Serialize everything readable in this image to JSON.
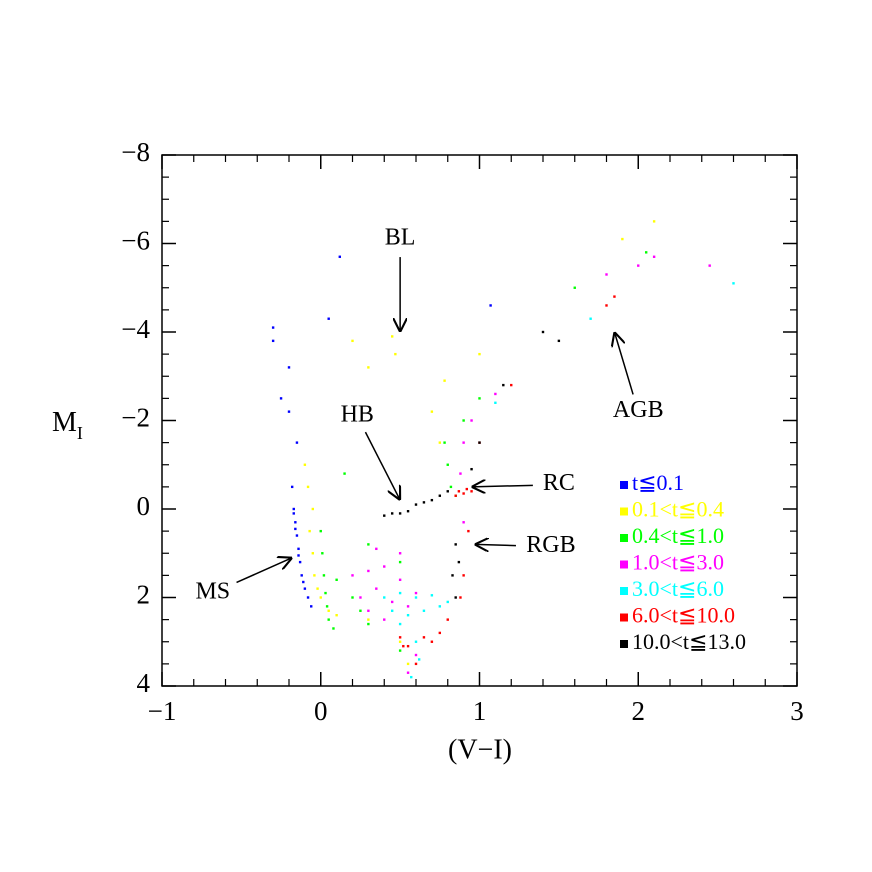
{
  "chart_data": {
    "type": "scatter",
    "xlabel": "(V−I)",
    "ylabel": "M",
    "ylabel_sub": "I",
    "xlim": [
      -1,
      3
    ],
    "ylim": [
      -8,
      4
    ],
    "y_inverted": true,
    "xticks": [
      {
        "value": -1,
        "label": "−1"
      },
      0,
      1,
      2,
      3
    ],
    "yticks": [
      {
        "value": -8,
        "label": "−8"
      },
      {
        "value": -6,
        "label": "−6"
      },
      {
        "value": -4,
        "label": "−4"
      },
      {
        "value": -2,
        "label": "−2"
      },
      0,
      2,
      4
    ],
    "xminorticks": [
      -0.8,
      -0.6,
      -0.4,
      -0.2,
      0.2,
      0.4,
      0.6,
      0.8,
      1.2,
      1.4,
      1.6,
      1.8,
      2.2,
      2.4,
      2.6,
      2.8
    ],
    "yminorticks": [
      -7.5,
      -7,
      -6.5,
      -5.5,
      -5,
      -4.5,
      -3.5,
      -3,
      -2.5,
      -1.5,
      -1,
      -0.5,
      0.5,
      1,
      1.5,
      2.5,
      3,
      3.5
    ],
    "legend": "lower right",
    "series": [
      {
        "name": "t≦0.1",
        "color": "#0000ff",
        "x": [
          -0.3,
          -0.3,
          -0.2,
          -0.25,
          0.12,
          0.05,
          1.07,
          -0.2,
          -0.15,
          -0.18,
          -0.17,
          -0.16,
          -0.15,
          -0.14,
          -0.13,
          -0.12,
          -0.1,
          -0.08,
          -0.06,
          -0.17,
          -0.16,
          -0.14,
          -0.11
        ],
        "y": [
          -4.1,
          -3.8,
          -3.2,
          -2.5,
          -5.7,
          -4.3,
          -4.6,
          -2.2,
          -1.5,
          -0.5,
          0,
          0.3,
          0.6,
          0.9,
          1.2,
          1.5,
          1.8,
          2.0,
          2.2,
          0.1,
          0.45,
          1.05,
          1.65
        ]
      },
      {
        "name": "0.1<t≦0.4",
        "color": "#ffff00",
        "x": [
          -0.1,
          -0.08,
          -0.05,
          -0.05,
          -0.04,
          0,
          0.05,
          0.2,
          0.3,
          0.45,
          0.47,
          0.7,
          0.75,
          0.78,
          1.0,
          1.9,
          2.1,
          0.1,
          0.3,
          0.5,
          0.55,
          -0.07,
          -0.02
        ],
        "y": [
          -1.0,
          -0.5,
          0,
          1,
          1.5,
          2,
          2.3,
          -3.8,
          -3.2,
          -3.9,
          -3.5,
          -2.2,
          -1.5,
          -2.9,
          -3.5,
          -6.1,
          -6.5,
          2.4,
          2.5,
          3.0,
          3.5,
          0.5,
          1.8
        ]
      },
      {
        "name": "0.4<t≦1.0",
        "color": "#00ff00",
        "x": [
          0,
          0.01,
          0.02,
          0.03,
          0.04,
          0.05,
          0.3,
          0.5,
          0.78,
          0.8,
          0.82,
          0.85,
          0.9,
          1.0,
          1.6,
          2.05,
          0.15,
          0.3,
          0.5,
          0.1,
          0.2,
          0.08,
          0.25
        ],
        "y": [
          0.5,
          1.0,
          1.5,
          1.9,
          2.2,
          2.5,
          2.6,
          3.2,
          -1.5,
          -1.0,
          -0.5,
          -0.3,
          -2.0,
          -2.5,
          -5.0,
          -5.8,
          -0.8,
          0.8,
          1.2,
          1.6,
          2.0,
          2.7,
          2.3
        ]
      },
      {
        "name": "1.0<t≦3.0",
        "color": "#ff00ff",
        "x": [
          0.2,
          0.3,
          0.4,
          0.5,
          0.6,
          0.25,
          0.35,
          0.45,
          0.55,
          0.3,
          0.4,
          0.9,
          0.95,
          1.1,
          0.88,
          0.9,
          2.0,
          2.1,
          2.45,
          1.8,
          0.6,
          0.55,
          0.5,
          0.35
        ],
        "y": [
          1.5,
          1.4,
          1.3,
          1.6,
          1.9,
          2.0,
          1.8,
          2.1,
          2.2,
          2.3,
          2.5,
          -1.5,
          -2.0,
          -2.6,
          -0.8,
          0.3,
          -5.5,
          -5.7,
          -5.5,
          -5.3,
          3.3,
          3.7,
          1.0,
          0.9
        ]
      },
      {
        "name": "3.0<t≦6.0",
        "color": "#00ffff",
        "x": [
          0.4,
          0.5,
          0.6,
          0.7,
          0.8,
          0.45,
          0.55,
          0.65,
          0.75,
          2.6,
          1.7,
          0.6,
          0.57,
          1.1,
          0.5,
          0.62
        ],
        "y": [
          2.0,
          1.9,
          2.0,
          1.95,
          2.1,
          2.3,
          2.4,
          2.3,
          2.2,
          -5.1,
          -4.3,
          3.0,
          3.8,
          -2.4,
          2.6,
          3.4
        ]
      },
      {
        "name": "6.0<t≦10.0",
        "color": "#ff0000",
        "x": [
          0.85,
          0.87,
          0.9,
          0.92,
          0.95,
          0.93,
          0.9,
          0.88,
          0.8,
          0.75,
          0.6,
          0.55,
          0.65,
          0.7,
          1.8,
          1.85,
          1.2,
          1.0,
          0.5,
          0.52
        ],
        "y": [
          -0.3,
          -0.4,
          -0.35,
          -0.45,
          -0.4,
          0.5,
          1.5,
          2.0,
          2.5,
          2.8,
          3.5,
          3.1,
          2.9,
          3.0,
          -4.6,
          -4.8,
          -2.8,
          -1.5,
          2.9,
          3.1
        ]
      },
      {
        "name": "10.0<t≦13.0",
        "color": "#000000",
        "x": [
          0.5,
          0.55,
          0.6,
          0.65,
          0.7,
          0.75,
          0.8,
          0.45,
          0.4,
          0.85,
          0.83,
          0.85,
          0.87,
          1.0,
          1.15,
          1.4,
          1.5,
          0.95
        ],
        "y": [
          0.1,
          0.05,
          -0.1,
          -0.15,
          -0.2,
          -0.3,
          -0.4,
          0.1,
          0.15,
          0.8,
          1.5,
          2.0,
          1.2,
          -1.5,
          -2.8,
          -4.0,
          -3.8,
          -0.9
        ]
      }
    ],
    "annotations": [
      {
        "text": "BL",
        "xy": [
          0.5,
          -4.0
        ],
        "xytext": [
          0.5,
          -6.1
        ]
      },
      {
        "text": "HB",
        "xy": [
          0.5,
          -0.2
        ],
        "xytext": [
          0.23,
          -2.1
        ]
      },
      {
        "text": "RC",
        "xy": [
          0.95,
          -0.5
        ],
        "xytext": [
          1.5,
          -0.55
        ]
      },
      {
        "text": "RGB",
        "xy": [
          0.97,
          0.8
        ],
        "xytext": [
          1.45,
          0.85
        ]
      },
      {
        "text": "MS",
        "xy": [
          -0.18,
          1.1
        ],
        "xytext": [
          -0.68,
          1.9
        ]
      },
      {
        "text": "AGB",
        "xy": [
          1.85,
          -4.0
        ],
        "xytext": [
          2.0,
          -2.2
        ]
      }
    ]
  }
}
